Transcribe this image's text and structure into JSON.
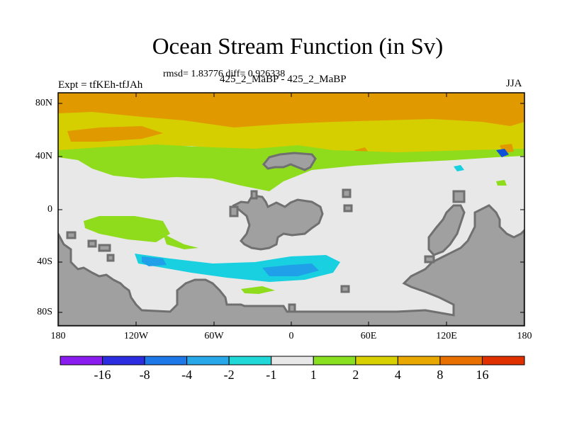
{
  "title": "Ocean Stream Function (in Sv)",
  "stats": "rmsd= 1.83776 diff= 0.926338",
  "left_label": "Expt = tfKEh-tfJAh",
  "center_label": "425_2_MaBP - 425_2_MaBP",
  "right_label": "JJA",
  "y_ticks": [
    "80N",
    "40N",
    "0",
    "40S",
    "80S"
  ],
  "x_ticks": [
    "180",
    "120W",
    "60W",
    "0",
    "60E",
    "120E",
    "180"
  ],
  "colorbar": {
    "colors": [
      "#8a1cf0",
      "#2c2ce0",
      "#1f78e8",
      "#28a8e8",
      "#20d8d8",
      "#e8e8e8",
      "#88e020",
      "#d8d000",
      "#e8a800",
      "#e87000",
      "#e03000"
    ],
    "labels": [
      "-16",
      "-8",
      "-4",
      "-2",
      "-1",
      "1",
      "2",
      "4",
      "8",
      "16"
    ]
  },
  "palette": {
    "land": "#a0a0a0",
    "coast": "#707070",
    "ocean": "#e8e8e8",
    "level_orange": "#e09a00",
    "level_yellow": "#d6cf00",
    "level_green": "#8edc1c",
    "level_cyan": "#18d0e0",
    "level_blue": "#20a0e8",
    "level_darkblue": "#1050d8"
  }
}
